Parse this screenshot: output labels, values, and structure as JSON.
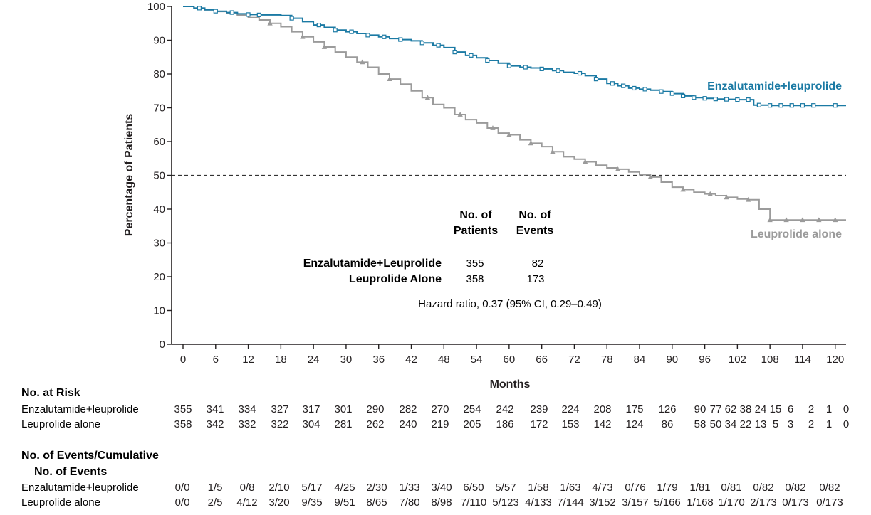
{
  "chart_data": {
    "type": "line",
    "ylabel": "Percentage of Patients",
    "xlabel": "Months",
    "ylim": [
      0,
      100
    ],
    "xlim": [
      0,
      122
    ],
    "y_ticks": [
      0,
      10,
      20,
      30,
      40,
      50,
      60,
      70,
      80,
      90,
      100
    ],
    "x_ticks": [
      0,
      6,
      12,
      18,
      24,
      30,
      36,
      42,
      48,
      54,
      60,
      66,
      72,
      78,
      84,
      90,
      96,
      102,
      108,
      114,
      120
    ],
    "reference_line": {
      "y": 50,
      "style": "dashed"
    },
    "colors": {
      "enz": "#1b7aa4",
      "leu": "#9b9b9b",
      "axis": "#231f20"
    },
    "series": [
      {
        "name": "Enzalutamide+leuprolide",
        "label": "Enzalutamide+leuprolide",
        "x": [
          0,
          2,
          4,
          6,
          8,
          10,
          12,
          14,
          18,
          20,
          22,
          24,
          26,
          28,
          30,
          32,
          34,
          36,
          38,
          40,
          42,
          44,
          46,
          48,
          50,
          52,
          54,
          56,
          58,
          60,
          62,
          64,
          66,
          68,
          70,
          72,
          74,
          76,
          78,
          80,
          82,
          84,
          86,
          88,
          90,
          92,
          94,
          96,
          98,
          100,
          102,
          104,
          105,
          106,
          108,
          112,
          116,
          120,
          122
        ],
        "y": [
          100,
          99.5,
          99,
          98.6,
          98.2,
          97.8,
          97.6,
          97.5,
          97.3,
          96.5,
          95.5,
          94.5,
          93.8,
          93,
          92.5,
          92,
          91.5,
          91,
          90.5,
          90.2,
          89.8,
          89.2,
          88.5,
          87.8,
          86.5,
          85.5,
          84.8,
          84,
          83.2,
          82.4,
          82,
          81.8,
          81.5,
          81,
          80.5,
          80.2,
          79.5,
          78.5,
          77.2,
          76.5,
          75.8,
          75.5,
          75.2,
          74.8,
          74.2,
          73.5,
          73,
          72.8,
          72.6,
          72.5,
          72.4,
          72.4,
          70.8,
          70.8,
          70.7,
          70.7,
          70.7,
          70.7,
          70.7
        ],
        "censor_x": [
          3,
          6,
          9,
          12,
          14,
          20,
          25,
          28,
          31,
          34,
          37,
          40,
          44,
          47,
          50,
          53,
          56,
          60,
          63,
          66,
          69,
          73,
          76,
          79,
          81,
          83,
          85,
          88,
          90,
          92,
          94,
          96,
          98,
          100,
          102,
          104,
          106,
          108,
          110,
          112,
          114,
          116,
          120
        ]
      },
      {
        "name": "Leuprolide alone",
        "label": "Leuprolide alone",
        "x": [
          0,
          2,
          4,
          6,
          8,
          10,
          12,
          14,
          16,
          18,
          20,
          22,
          24,
          26,
          28,
          30,
          32,
          34,
          36,
          38,
          40,
          42,
          44,
          46,
          48,
          50,
          52,
          54,
          56,
          58,
          60,
          62,
          64,
          66,
          68,
          70,
          72,
          74,
          76,
          78,
          80,
          82,
          84,
          86,
          88,
          90,
          92,
          94,
          96,
          98,
          100,
          102,
          104,
          105,
          106,
          108,
          112,
          116,
          120,
          122
        ],
        "y": [
          100,
          99.5,
          99,
          98.5,
          98,
          97.4,
          96.7,
          96,
          95,
          94,
          92.5,
          91,
          89.5,
          88,
          86.5,
          85,
          83.5,
          82,
          80,
          78.5,
          77,
          75,
          73,
          71,
          70,
          68,
          66.5,
          65.5,
          64,
          62.5,
          62,
          60.5,
          59.5,
          58.5,
          57,
          55.5,
          54.8,
          54,
          53,
          52.2,
          51.8,
          51,
          50.2,
          49.5,
          48,
          46.5,
          45.8,
          45,
          44.5,
          44,
          43.5,
          43,
          42.8,
          42.8,
          40,
          36.8,
          36.8,
          36.8,
          36.8,
          36.8
        ],
        "censor_x": [
          16,
          22,
          26,
          33,
          38,
          45,
          51,
          57,
          60,
          64,
          68,
          74,
          80,
          86,
          92,
          97,
          100,
          104,
          108,
          111,
          114,
          117,
          120
        ]
      }
    ],
    "summary_table": {
      "col_header_patients_1": "No. of",
      "col_header_patients_2": "Patients",
      "col_header_events_1": "No. of",
      "col_header_events_2": "Events",
      "rows": [
        {
          "label": "Enzalutamide+Leuprolide",
          "patients": "355",
          "events": "82"
        },
        {
          "label": "Leuprolide Alone",
          "patients": "358",
          "events": "173"
        }
      ]
    },
    "hazard_text": "Hazard ratio, 0.37 (95% CI, 0.29–0.49)",
    "risk_table": {
      "title": "No. at Risk",
      "rows": [
        {
          "label": "Enzalutamide+leuprolide",
          "values": [
            "355",
            "341",
            "334",
            "327",
            "317",
            "301",
            "290",
            "282",
            "270",
            "254",
            "242",
            "239",
            "224",
            "208",
            "175",
            "126",
            "90",
            "77",
            "62",
            "38",
            "24",
            "15",
            "6",
            "2",
            "1",
            "0"
          ]
        },
        {
          "label": "Leuprolide alone",
          "values": [
            "358",
            "342",
            "332",
            "322",
            "304",
            "281",
            "262",
            "240",
            "219",
            "205",
            "186",
            "172",
            "153",
            "142",
            "124",
            "86",
            "58",
            "50",
            "34",
            "22",
            "13",
            "5",
            "3",
            "2",
            "1",
            "0"
          ]
        }
      ]
    },
    "events_table": {
      "title_1": "No. of Events/Cumulative",
      "title_2": "No. of Events",
      "rows": [
        {
          "label": "Enzalutamide+leuprolide",
          "values": [
            "0/0",
            "1/5",
            "0/8",
            "2/10",
            "5/17",
            "4/25",
            "2/30",
            "1/33",
            "3/40",
            "6/50",
            "5/57",
            "1/58",
            "1/63",
            "4/73",
            "0/76",
            "1/79",
            "1/81",
            "0/81",
            "0/82",
            "0/82",
            "0/82"
          ]
        },
        {
          "label": "Leuprolide alone",
          "values": [
            "0/0",
            "2/5",
            "4/12",
            "3/20",
            "9/35",
            "9/51",
            "8/65",
            "7/80",
            "8/98",
            "7/110",
            "5/123",
            "4/133",
            "7/144",
            "3/152",
            "3/157",
            "5/166",
            "1/168",
            "1/170",
            "2/173",
            "0/173",
            "0/173"
          ]
        }
      ]
    }
  }
}
